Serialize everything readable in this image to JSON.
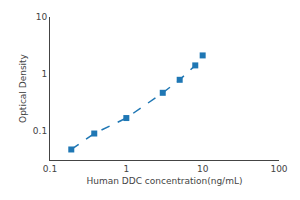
{
  "chart_data": {
    "type": "line",
    "x": [
      0.19,
      0.38,
      1.0,
      3.0,
      5.0,
      8.0,
      10.0
    ],
    "values": [
      0.046,
      0.088,
      0.165,
      0.46,
      0.78,
      1.4,
      2.1
    ],
    "xlabel": "Human DDC concentration(ng/mL)",
    "ylabel": "Optical Density",
    "log": true,
    "xlim": [
      0.1,
      100
    ],
    "ylim": [
      0.03,
      10
    ],
    "xticks": [
      0.1,
      1,
      10,
      100
    ],
    "yticks": [
      0.1,
      1,
      10
    ],
    "marker": "square",
    "line_style": "dashed",
    "grid": false
  }
}
